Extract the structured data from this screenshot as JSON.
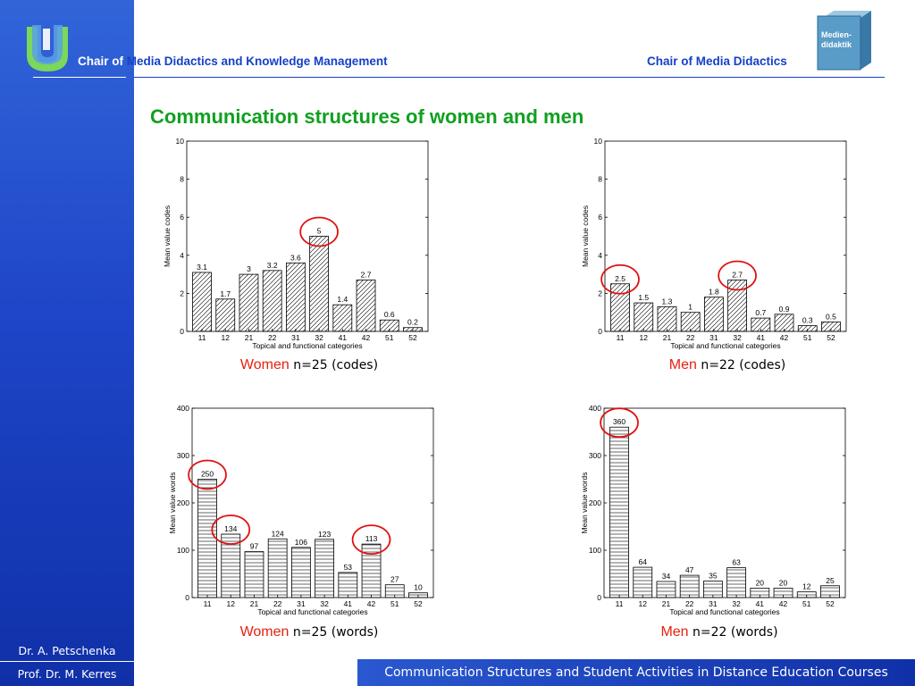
{
  "header": {
    "left_prefix": "Chair of",
    "left_rest": " Media Didactics and Knowledge Management",
    "right": "Chair of Media Didactics",
    "logo_text": "Medien-\ndidaktik"
  },
  "slide": {
    "title": "Communication structures of women and men"
  },
  "authors": [
    "Dr. A. Petschenka",
    "Prof. Dr. M. Kerres"
  ],
  "footer": {
    "text": "Communication Structures and Student Activities in Distance Education Courses"
  },
  "colors": {
    "title": "#10a020",
    "header": "#1540c8",
    "highlight_circle": "#e01010",
    "caption_group": "#e82010"
  },
  "chart_data": [
    {
      "type": "bar",
      "hatch": "diagonal",
      "categories": [
        "11",
        "12",
        "21",
        "22",
        "31",
        "32",
        "41",
        "42",
        "51",
        "52"
      ],
      "values": [
        3.1,
        1.7,
        3,
        3.2,
        3.6,
        5,
        1.4,
        2.7,
        0.6,
        0.2
      ],
      "labels": [
        "3.1",
        "1.7",
        "3",
        "3.2",
        "3.6",
        "5",
        "1.4",
        "2.7",
        "0.6",
        "0.2"
      ],
      "ylim": [
        0,
        10
      ],
      "yticks": [
        0,
        2,
        4,
        6,
        8,
        10
      ],
      "xlabel": "Topical and functional categories",
      "ylabel": "Mean value codes",
      "highlighted": [
        5
      ],
      "caption_group": "Women",
      "caption_n": " n=25 (codes)"
    },
    {
      "type": "bar",
      "hatch": "diagonal",
      "categories": [
        "11",
        "12",
        "21",
        "22",
        "31",
        "32",
        "41",
        "42",
        "51",
        "52"
      ],
      "values": [
        2.5,
        1.5,
        1.3,
        1,
        1.8,
        2.7,
        0.7,
        0.9,
        0.3,
        0.5
      ],
      "labels": [
        "2.5",
        "1.5",
        "1.3",
        "1",
        "1.8",
        "2.7",
        "0.7",
        "0.9",
        "0.3",
        "0.5"
      ],
      "ylim": [
        0,
        10
      ],
      "yticks": [
        0,
        2,
        4,
        6,
        8,
        10
      ],
      "xlabel": "Topical and functional categories",
      "ylabel": "Mean value codes",
      "highlighted": [
        0,
        5
      ],
      "caption_group": "Men",
      "caption_n": " n=22 (codes)"
    },
    {
      "type": "bar",
      "hatch": "horizontal",
      "categories": [
        "11",
        "12",
        "21",
        "22",
        "31",
        "32",
        "41",
        "42",
        "51",
        "52"
      ],
      "values": [
        250,
        134,
        97,
        124,
        106,
        123,
        53,
        113,
        27,
        10
      ],
      "labels": [
        "250",
        "134",
        "97",
        "124",
        "106",
        "123",
        "53",
        "113",
        "27",
        "10"
      ],
      "ylim": [
        0,
        400
      ],
      "yticks": [
        0,
        100,
        200,
        300,
        400
      ],
      "xlabel": "Topical and functional categories",
      "ylabel": "Mean value words",
      "highlighted": [
        0,
        1,
        7
      ],
      "caption_group": "Women",
      "caption_n": " n=25 (words)"
    },
    {
      "type": "bar",
      "hatch": "horizontal",
      "categories": [
        "11",
        "12",
        "21",
        "22",
        "31",
        "32",
        "41",
        "42",
        "51",
        "52"
      ],
      "values": [
        360,
        64,
        34,
        47,
        35,
        63,
        20,
        20,
        12,
        25
      ],
      "labels": [
        "360",
        "64",
        "34",
        "47",
        "35",
        "63",
        "20",
        "20",
        "12",
        "25"
      ],
      "ylim": [
        0,
        400
      ],
      "yticks": [
        0,
        100,
        200,
        300,
        400
      ],
      "xlabel": "Topical and functional categories",
      "ylabel": "Mean value words",
      "highlighted": [
        0
      ],
      "caption_group": "Men",
      "caption_n": " n=22 (words)"
    }
  ]
}
